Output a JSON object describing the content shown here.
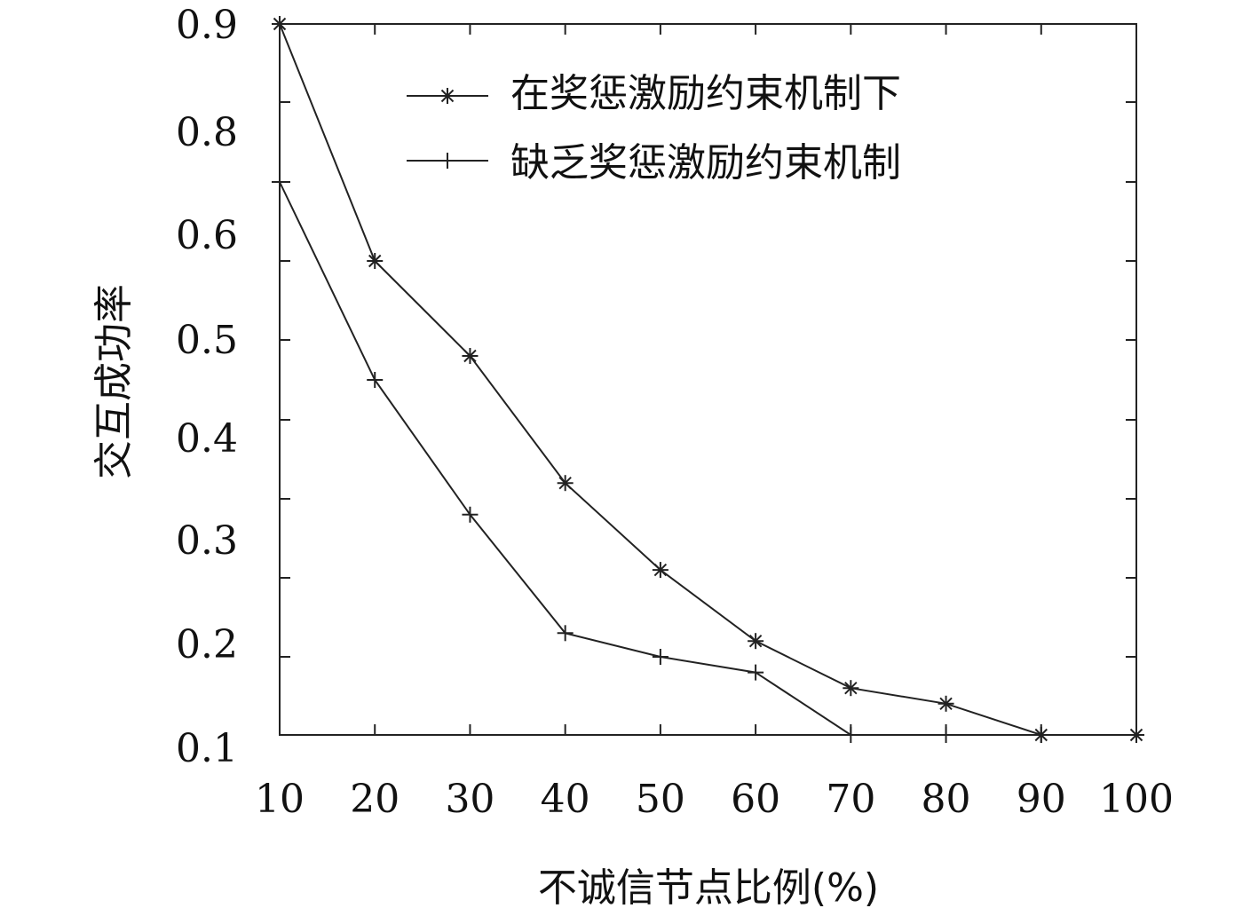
{
  "chart_data": {
    "type": "line",
    "title": "",
    "xlabel": "不诚信节点比例(%)",
    "ylabel": "交互成功率",
    "x": [
      10,
      20,
      30,
      40,
      50,
      60,
      70,
      80,
      90,
      100
    ],
    "xlim": [
      10,
      100
    ],
    "ylim": [
      0.1,
      0.9
    ],
    "yticks": [
      "0.9",
      "0.8",
      "0.6",
      "0.5",
      "0.4",
      "0.3",
      "0.2",
      "0.1"
    ],
    "xticks": [
      "10",
      "20",
      "30",
      "40",
      "50",
      "60",
      "70",
      "80",
      "90",
      "100"
    ],
    "grid": false,
    "legend_position": "top-right",
    "series": [
      {
        "name": "在奖惩激励约束机制下",
        "marker": "asterisk",
        "values": [
          0.9,
          0.7,
          0.58,
          0.42,
          0.31,
          0.22,
          0.16,
          0.14,
          0.1,
          0.055
        ]
      },
      {
        "name": "缺乏奖惩激励约束机制",
        "marker": "plus",
        "values": [
          0.8,
          0.55,
          0.38,
          0.23,
          0.2,
          0.18,
          0.09,
          0.075,
          0.065,
          0.055
        ]
      }
    ]
  }
}
